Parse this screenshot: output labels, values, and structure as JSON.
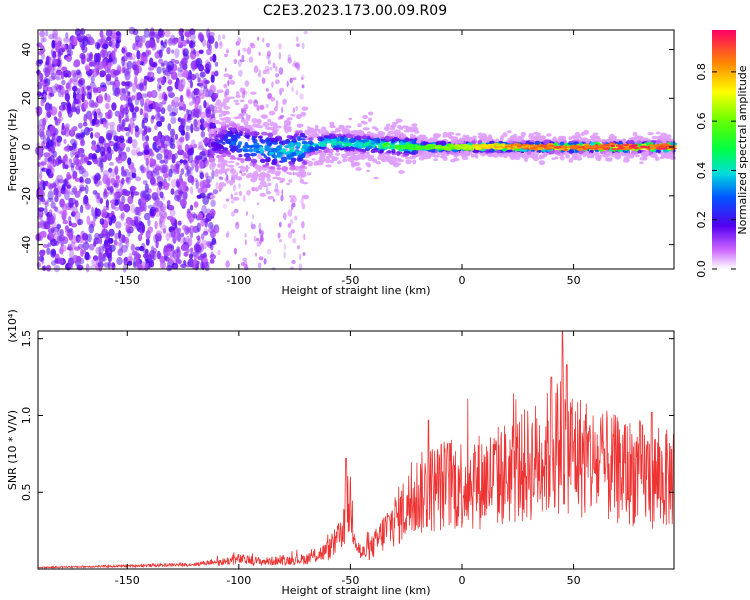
{
  "title": "C2E3.2023.173.00.09.R09",
  "chart_data": [
    {
      "type": "heatmap",
      "xlabel": "Height of straight line (km)",
      "ylabel": "Frequency (Hz)",
      "xlim": [
        -190,
        95
      ],
      "ylim": [
        -50,
        48
      ],
      "xticks": [
        "-150",
        "-100",
        "-50",
        "0",
        "50"
      ],
      "xtick_values": [
        -150,
        -100,
        -50,
        0,
        50
      ],
      "yticks": [
        "-40",
        "-20",
        "0",
        "20",
        "40"
      ],
      "ytick_values": [
        -40,
        -20,
        0,
        20,
        40
      ],
      "colorbar": {
        "label": "Normalized spectral amplitude",
        "range": [
          0,
          0.97
        ],
        "ticks": [
          "0.0",
          "0.2",
          "0.4",
          "0.6",
          "0.8"
        ],
        "tick_values": [
          0.0,
          0.2,
          0.4,
          0.6,
          0.8
        ]
      },
      "ridge_profile": [
        {
          "x": -112,
          "freq": 0,
          "amp": 0.15
        },
        {
          "x": -105,
          "freq": 3,
          "amp": 0.3
        },
        {
          "x": -95,
          "freq": 0,
          "amp": 0.35
        },
        {
          "x": -80,
          "freq": -2,
          "amp": 0.4
        },
        {
          "x": -60,
          "freq": 2,
          "amp": 0.45
        },
        {
          "x": -40,
          "freq": 1,
          "amp": 0.5
        },
        {
          "x": -20,
          "freq": 0,
          "amp": 0.6
        },
        {
          "x": 0,
          "freq": 0,
          "amp": 0.7
        },
        {
          "x": 20,
          "freq": 0,
          "amp": 0.85
        },
        {
          "x": 40,
          "freq": 0,
          "amp": 0.9
        },
        {
          "x": 60,
          "freq": 0,
          "amp": 0.92
        },
        {
          "x": 80,
          "freq": 0,
          "amp": 0.95
        },
        {
          "x": 92,
          "freq": 0,
          "amp": 0.95
        }
      ]
    },
    {
      "type": "line",
      "xlabel": "Height of straight line (km)",
      "ylabel": "SNR (10 * V/V)",
      "y_multiplier": "(x10⁴)",
      "xlim": [
        -190,
        95
      ],
      "ylim": [
        0,
        1.55
      ],
      "xticks": [
        "-150",
        "-100",
        "-50",
        "0",
        "50"
      ],
      "xtick_values": [
        -150,
        -100,
        -50,
        0,
        50
      ],
      "yticks": [
        "0.5",
        "1.0",
        "1.5"
      ],
      "ytick_values": [
        0.5,
        1.0,
        1.5
      ],
      "color": "#ee3333",
      "envelope": {
        "x": [
          -190,
          -150,
          -120,
          -110,
          -100,
          -90,
          -80,
          -70,
          -60,
          -55,
          -52,
          -50,
          -47,
          -45,
          -40,
          -35,
          -30,
          -25,
          -20,
          -10,
          0,
          10,
          20,
          30,
          40,
          45,
          50,
          60,
          70,
          80,
          85,
          90,
          95
        ],
        "y": [
          0.01,
          0.02,
          0.03,
          0.05,
          0.08,
          0.06,
          0.07,
          0.08,
          0.15,
          0.25,
          0.45,
          0.55,
          0.2,
          0.12,
          0.18,
          0.3,
          0.4,
          0.5,
          0.6,
          0.68,
          0.7,
          0.72,
          0.78,
          0.85,
          0.95,
          1.05,
          0.95,
          0.85,
          0.8,
          0.78,
          0.75,
          0.72,
          0.75
        ]
      },
      "peaks": [
        {
          "x": -52,
          "y": 0.72
        },
        {
          "x": -15,
          "y": 0.97
        },
        {
          "x": 40,
          "y": 1.25
        },
        {
          "x": 45,
          "y": 1.55
        },
        {
          "x": 47,
          "y": 1.33
        },
        {
          "x": 85,
          "y": 1.02
        }
      ]
    }
  ]
}
